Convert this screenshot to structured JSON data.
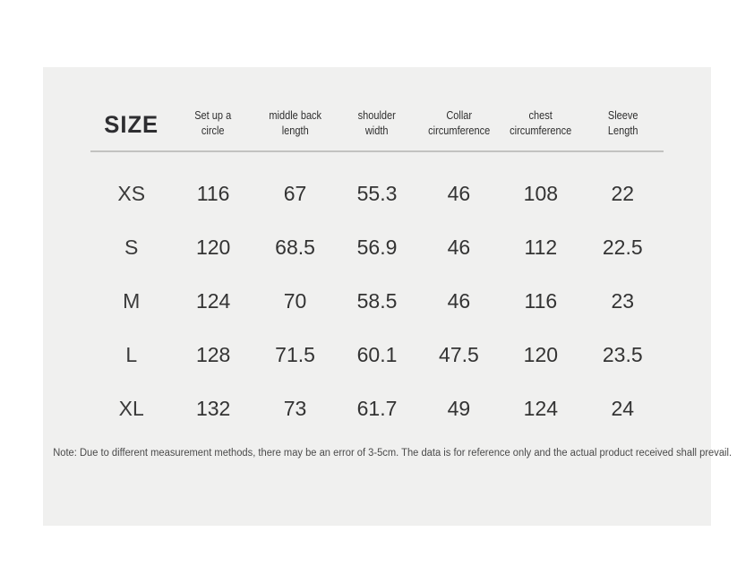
{
  "colors": {
    "page_background": "#ffffff",
    "card_background": "#f0f0ef",
    "text_dark": "#333333",
    "separator_line": "#c2c2c0",
    "note_text": "#4a4a4a"
  },
  "chart_data": {
    "type": "table",
    "title": "SIZE",
    "columns": [
      "Set up a circle",
      "middle back length",
      "shoulder width",
      "Collar circumference",
      "chest circumference",
      "Sleeve Length"
    ],
    "column_lines": [
      [
        "Set up a",
        "circle"
      ],
      [
        "middle back",
        "length"
      ],
      [
        "shoulder",
        "width"
      ],
      [
        "Collar",
        "circumference"
      ],
      [
        "chest",
        "circumference"
      ],
      [
        "Sleeve",
        "Length"
      ]
    ],
    "rows": [
      {
        "size": "XS",
        "values": [
          "116",
          "67",
          "55.3",
          "46",
          "108",
          "22"
        ]
      },
      {
        "size": "S",
        "values": [
          "120",
          "68.5",
          "56.9",
          "46",
          "112",
          "22.5"
        ]
      },
      {
        "size": "M",
        "values": [
          "124",
          "70",
          "58.5",
          "46",
          "116",
          "23"
        ]
      },
      {
        "size": "L",
        "values": [
          "128",
          "71.5",
          "60.1",
          "47.5",
          "120",
          "23.5"
        ]
      },
      {
        "size": "XL",
        "values": [
          "132",
          "73",
          "61.7",
          "49",
          "124",
          "24"
        ]
      }
    ],
    "note": "Note: Due to different measurement methods, there may be an error of 3-5cm. The data is for reference only and the actual product received shall prevail."
  }
}
